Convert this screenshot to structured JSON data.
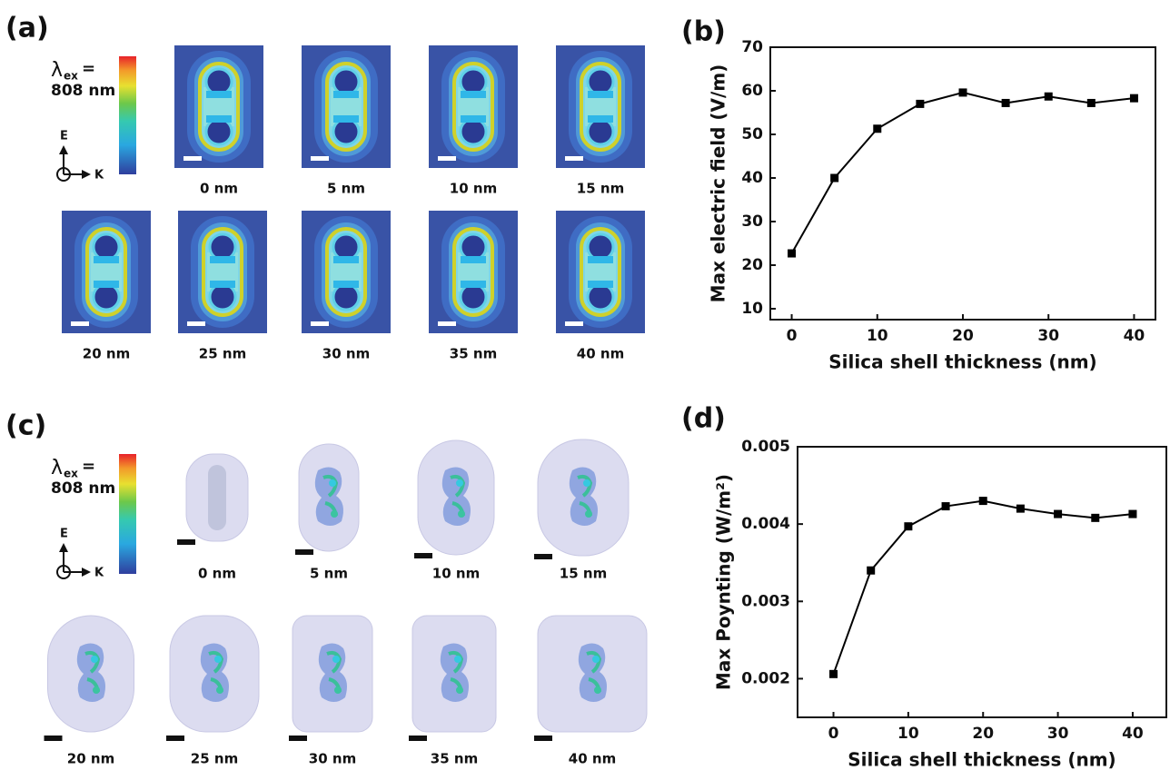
{
  "panels": {
    "a": {
      "label": "(a)",
      "lambda": "λ",
      "sub": "ex",
      "eq": "=",
      "wavelength": "808 nm",
      "e": "E",
      "k": "K",
      "captions": [
        "0 nm",
        "5 nm",
        "10 nm",
        "15 nm",
        "20 nm",
        "25 nm",
        "30 nm",
        "35 nm",
        "40 nm"
      ]
    },
    "c": {
      "label": "(c)",
      "lambda": "λ",
      "sub": "ex",
      "eq": "=",
      "wavelength": "808 nm",
      "e": "E",
      "k": "K",
      "captions": [
        "0 nm",
        "5 nm",
        "10 nm",
        "15 nm",
        "20 nm",
        "25 nm",
        "30 nm",
        "35 nm",
        "40 nm"
      ]
    }
  },
  "chart_data": [
    {
      "type": "line",
      "panel_label": "(b)",
      "xlabel": "Silica shell thickness (nm)",
      "ylabel": "Max electric field (V/m)",
      "x": [
        0,
        5,
        10,
        15,
        20,
        25,
        30,
        35,
        40
      ],
      "values": [
        22.7,
        40,
        51.3,
        57,
        59.6,
        57.2,
        58.7,
        57.2,
        58.3
      ],
      "color": "#000000",
      "xlim": [
        -2.5,
        42.5
      ],
      "ylim": [
        7.5,
        70
      ],
      "xticks": [
        0,
        10,
        20,
        30,
        40
      ],
      "yticks": [
        10,
        20,
        30,
        40,
        50,
        60,
        70
      ]
    },
    {
      "type": "line",
      "panel_label": "(d)",
      "xlabel": "Silica shell thickness (nm)",
      "ylabel": "Max Poynting (W/m²)",
      "x": [
        0,
        5,
        10,
        15,
        20,
        25,
        30,
        35,
        40
      ],
      "values": [
        0.00206,
        0.0034,
        0.00397,
        0.00423,
        0.0043,
        0.0042,
        0.00413,
        0.00408,
        0.00413
      ],
      "color": "#000000",
      "xlim": [
        -4.8,
        44.5
      ],
      "ylim": [
        0.0015,
        0.005
      ],
      "xticks": [
        0,
        10,
        20,
        30,
        40
      ],
      "yticks": [
        0.002,
        0.003,
        0.004,
        0.005
      ]
    }
  ]
}
